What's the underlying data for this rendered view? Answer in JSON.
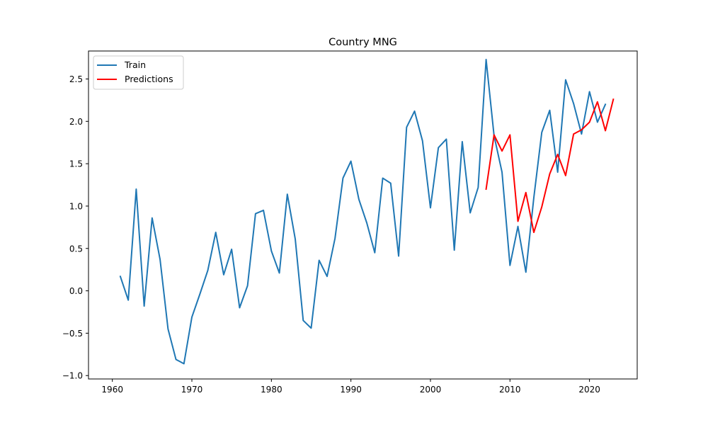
{
  "chart_data": {
    "type": "line",
    "title": "Country MNG",
    "xlabel": "",
    "ylabel": "",
    "xlim": [
      1957,
      2026
    ],
    "ylim": [
      -1.04,
      2.83
    ],
    "xticks": [
      1960,
      1970,
      1980,
      1990,
      2000,
      2010,
      2020
    ],
    "yticks": [
      -1.0,
      -0.5,
      0.0,
      0.5,
      1.0,
      1.5,
      2.0,
      2.5
    ],
    "xtick_labels": [
      "1960",
      "1970",
      "1980",
      "1990",
      "2000",
      "2010",
      "2020"
    ],
    "ytick_labels": [
      "−1.0",
      "−0.5",
      "0.0",
      "0.5",
      "1.0",
      "1.5",
      "2.0",
      "2.5"
    ],
    "grid": false,
    "legend_position": "top-left",
    "series": [
      {
        "name": "Train",
        "color": "#1f77b4",
        "x": [
          1961,
          1962,
          1963,
          1964,
          1965,
          1966,
          1967,
          1968,
          1969,
          1970,
          1971,
          1972,
          1973,
          1974,
          1975,
          1976,
          1977,
          1978,
          1979,
          1980,
          1981,
          1982,
          1983,
          1984,
          1985,
          1986,
          1987,
          1988,
          1989,
          1990,
          1991,
          1992,
          1993,
          1994,
          1995,
          1996,
          1997,
          1998,
          1999,
          2000,
          2001,
          2002,
          2003,
          2004,
          2005,
          2006,
          2007,
          2008,
          2009,
          2010,
          2011,
          2012,
          2013,
          2014,
          2015,
          2016,
          2017,
          2018,
          2019,
          2020,
          2021,
          2022
        ],
        "values": [
          0.17,
          -0.11,
          1.2,
          -0.18,
          0.86,
          0.37,
          -0.45,
          -0.81,
          -0.86,
          -0.31,
          -0.04,
          0.24,
          0.69,
          0.19,
          0.49,
          -0.2,
          0.06,
          0.91,
          0.95,
          0.47,
          0.21,
          1.14,
          0.61,
          -0.35,
          -0.44,
          0.36,
          0.17,
          0.62,
          1.33,
          1.53,
          1.08,
          0.8,
          0.45,
          1.33,
          1.27,
          0.41,
          1.93,
          2.12,
          1.77,
          0.98,
          1.69,
          1.79,
          0.48,
          1.76,
          0.92,
          1.22,
          2.73,
          1.83,
          1.4,
          0.3,
          0.76,
          0.22,
          1.1,
          1.87,
          2.13,
          1.4,
          2.49,
          2.21,
          1.85,
          2.35,
          1.99,
          2.2
        ]
      },
      {
        "name": "Predictions",
        "color": "#ff0000",
        "x": [
          2007,
          2008,
          2009,
          2010,
          2011,
          2012,
          2013,
          2014,
          2015,
          2016,
          2017,
          2018,
          2019,
          2020,
          2021,
          2022,
          2023
        ],
        "values": [
          1.2,
          1.84,
          1.65,
          1.84,
          0.82,
          1.16,
          0.69,
          0.99,
          1.38,
          1.61,
          1.36,
          1.85,
          1.9,
          1.99,
          2.23,
          1.89,
          2.26
        ]
      }
    ]
  }
}
